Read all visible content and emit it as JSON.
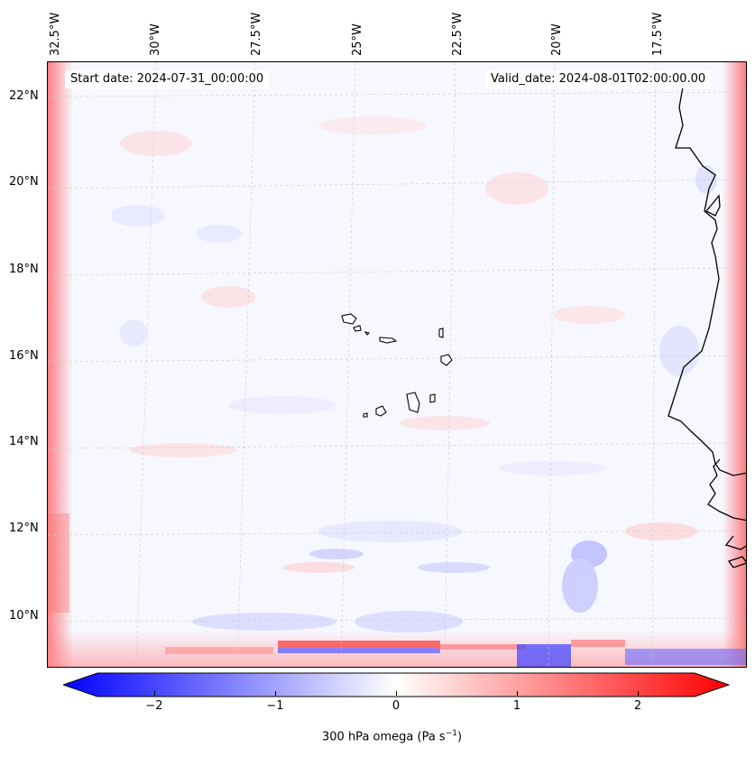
{
  "map": {
    "start_date": "Start date: 2024-07-31_00:00:00",
    "valid_date": "Valid_date: 2024-08-01T02:00:00.00",
    "lon_labels": [
      "32.5°W",
      "30°W",
      "27.5°W",
      "25°W",
      "22.5°W",
      "20°W",
      "17.5°W"
    ],
    "lat_labels": [
      "22°N",
      "20°N",
      "18°N",
      "16°N",
      "14°N",
      "12°N",
      "10°N"
    ],
    "colorbar": {
      "label": "300 hPa omega (Pa s",
      "label_sup": "−1",
      "label_end": ")",
      "ticks": [
        "−2",
        "−1",
        "0",
        "1",
        "2"
      ],
      "colormap": "bwr",
      "range": [
        -2.75,
        2.75
      ]
    },
    "colors": {
      "negative": "#0000ff",
      "positive": "#ff0000",
      "coast": "#000000"
    }
  }
}
